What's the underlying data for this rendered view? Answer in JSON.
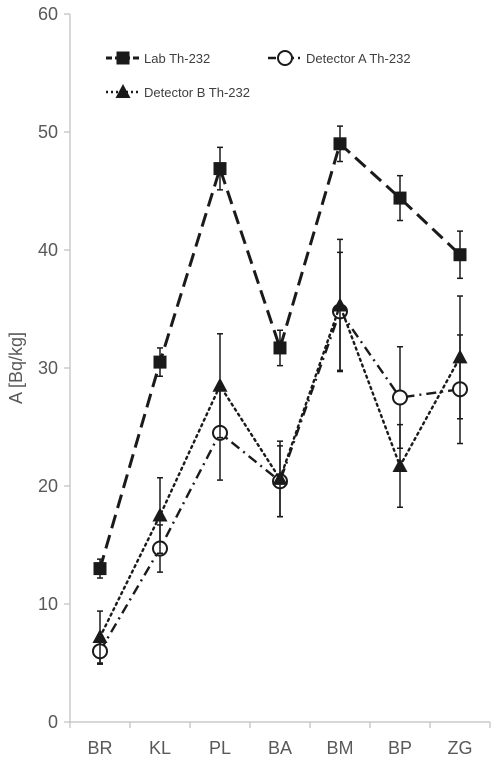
{
  "chart_data": {
    "type": "line",
    "title": "",
    "xlabel": "",
    "ylabel": "A  [Bq/kg]",
    "categories": [
      "BR",
      "KL",
      "PL",
      "BA",
      "BM",
      "BP",
      "ZG"
    ],
    "ylim": [
      0,
      60
    ],
    "yticks": [
      0,
      10,
      20,
      30,
      40,
      50,
      60
    ],
    "grid": false,
    "legend_position": "top",
    "series": [
      {
        "name": "Lab Th-232",
        "marker": "filled-square",
        "line_style": "dashed",
        "values": [
          13.0,
          30.5,
          46.9,
          31.7,
          49.0,
          44.4,
          39.6
        ],
        "error": [
          0.8,
          1.2,
          1.8,
          1.5,
          1.5,
          1.9,
          2.0
        ]
      },
      {
        "name": "Detector A Th-232",
        "marker": "open-circle",
        "line_style": "dash-dot",
        "values": [
          6.0,
          14.7,
          24.5,
          20.4,
          34.8,
          27.5,
          28.2
        ],
        "error": [
          1.1,
          2.0,
          4.0,
          3.0,
          5.0,
          4.3,
          4.6
        ]
      },
      {
        "name": "Detector B Th-232",
        "marker": "filled-triangle",
        "line_style": "dotted",
        "values": [
          7.2,
          17.5,
          28.5,
          20.6,
          35.3,
          21.7,
          30.9
        ],
        "error": [
          2.2,
          3.2,
          4.4,
          3.2,
          5.6,
          3.5,
          5.2
        ]
      }
    ]
  }
}
